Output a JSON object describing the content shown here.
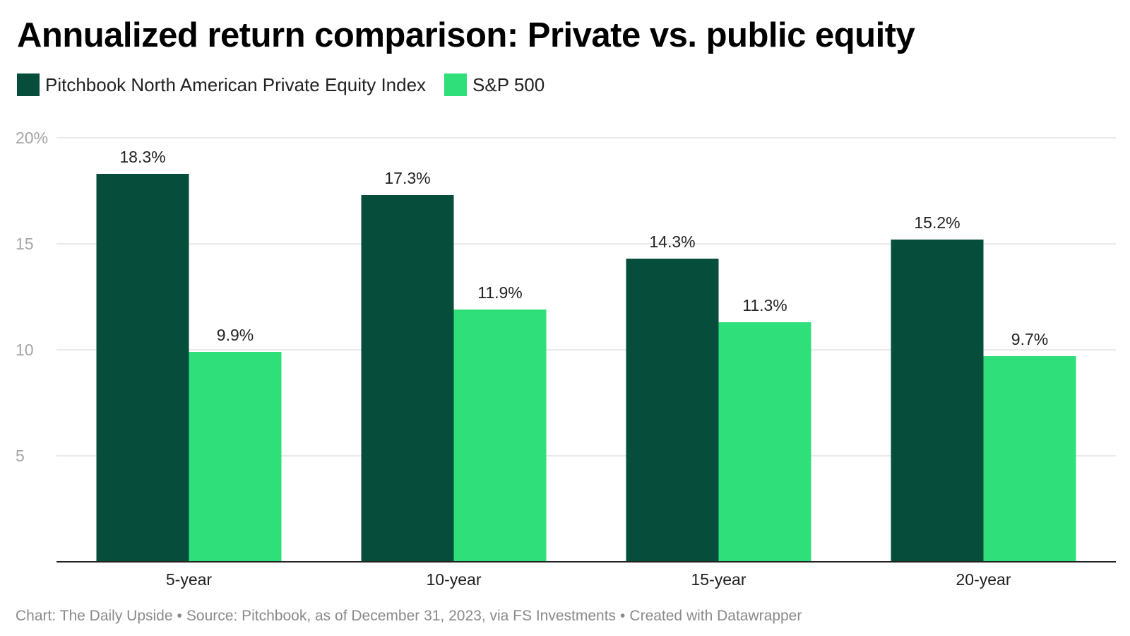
{
  "colors": {
    "private_equity": "#064e3b",
    "sp500": "#2fdf79",
    "gridline": "#e4e4e4",
    "axis": "#222222",
    "tick_label": "#a6a6a6",
    "footer_text": "#8a8a8a"
  },
  "footer": {
    "chart_credit": "Chart: The Daily Upside",
    "source": "Source: Pitchbook, as of December 31, 2023, via FS Investments",
    "created_with": "Created with Datawrapper"
  },
  "chart_data": {
    "type": "bar",
    "title": "Annualized return comparison: Private vs. public equity",
    "xlabel": "",
    "ylabel": "",
    "categories": [
      "5-year",
      "10-year",
      "15-year",
      "20-year"
    ],
    "series": [
      {
        "name": "Pitchbook North American Private Equity Index",
        "values": [
          18.3,
          17.3,
          14.3,
          15.2
        ],
        "labels": [
          "18.3%",
          "17.3%",
          "14.3%",
          "15.2%"
        ],
        "color": "#064e3b"
      },
      {
        "name": "S&P 500",
        "values": [
          9.9,
          11.9,
          11.3,
          9.7
        ],
        "labels": [
          "9.9%",
          "11.9%",
          "11.3%",
          "9.7%"
        ],
        "color": "#2fdf79"
      }
    ],
    "ylim": [
      0,
      20
    ],
    "yticks": [
      5,
      10,
      15,
      20
    ],
    "ytick_labels": [
      "5",
      "10",
      "15",
      "20%"
    ],
    "grid": true,
    "legend_position": "top-left"
  }
}
